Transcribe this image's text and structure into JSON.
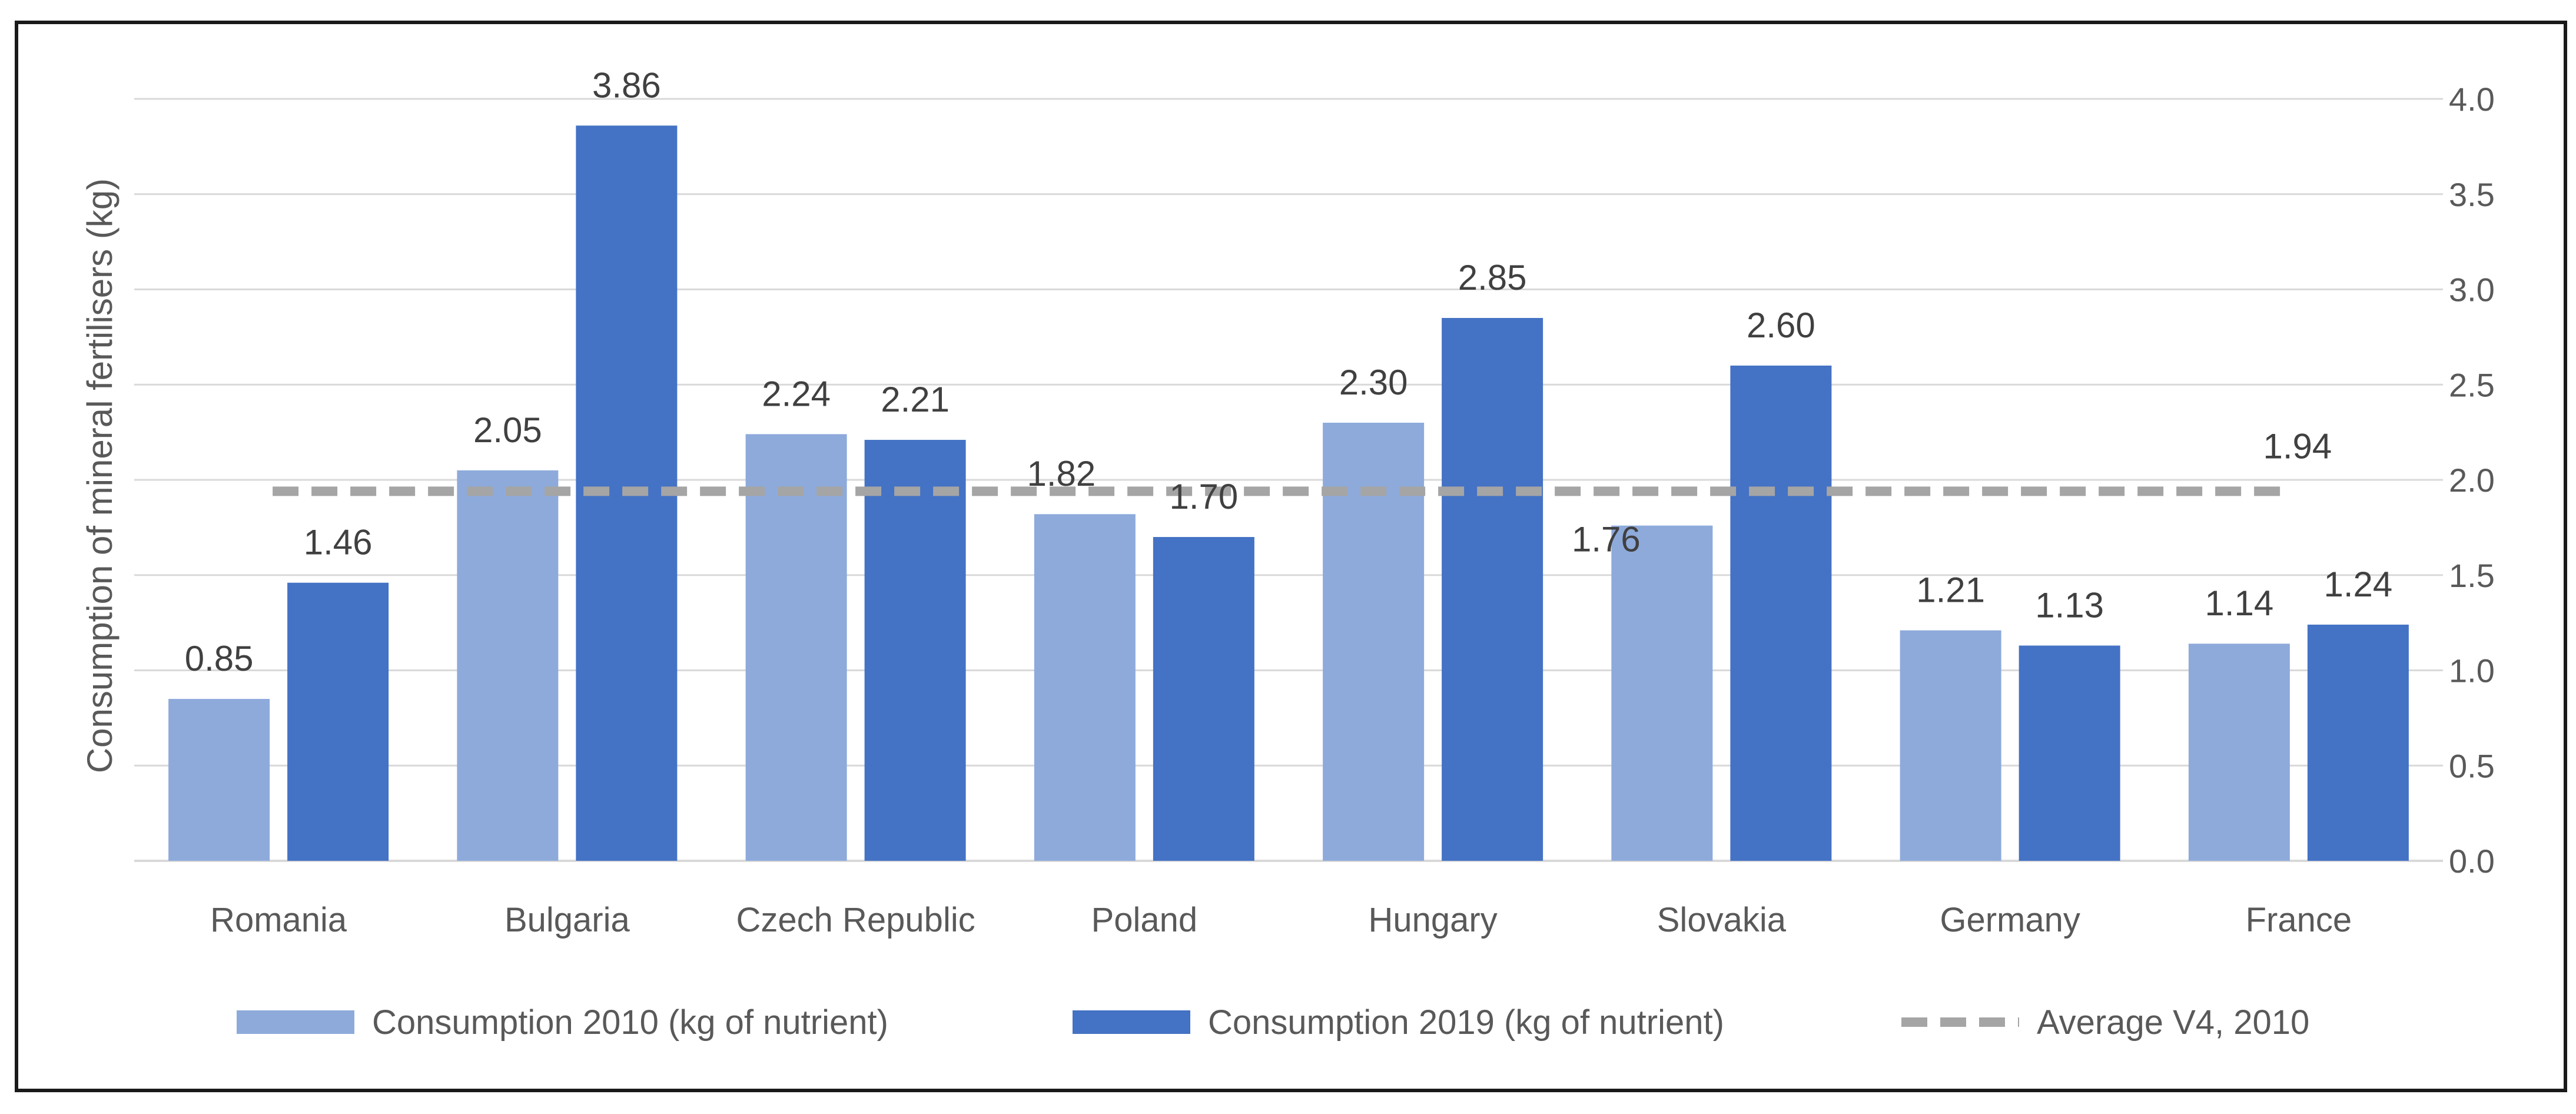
{
  "chart_data": {
    "type": "bar",
    "title": "",
    "ylabel": "Consumption of mineral fertilisers (kg)",
    "xlabel": "",
    "ylim": [
      0,
      4
    ],
    "y_ticks": [
      "0.0",
      "0.5",
      "1.0",
      "1.5",
      "2.0",
      "2.5",
      "3.0",
      "3.5",
      "4.0"
    ],
    "y_axis_side": "right",
    "categories": [
      "Romania",
      "Bulgaria",
      "Czech Republic",
      "Poland",
      "Hungary",
      "Slovakia",
      "Germany",
      "France"
    ],
    "series": [
      {
        "name": "Consumption 2010 (kg of nutrient)",
        "color": "#8eaadb",
        "values": [
          0.85,
          2.05,
          2.24,
          1.82,
          2.3,
          1.76,
          1.21,
          1.14
        ],
        "labels": [
          "0.85",
          "2.05",
          "2.24",
          "1.82",
          "2.30",
          "1.76",
          "1.21",
          "1.14"
        ]
      },
      {
        "name": "Consumption 2019 (kg of nutrient)",
        "color": "#4472c4",
        "values": [
          1.46,
          3.86,
          2.21,
          1.7,
          2.85,
          2.6,
          1.13,
          1.24
        ],
        "labels": [
          "1.46",
          "3.86",
          "2.21",
          "1.70",
          "2.85",
          "2.60",
          "1.13",
          "1.24"
        ]
      }
    ],
    "reference_line": {
      "name": "Average V4, 2010",
      "value": 1.94,
      "label": "1.94",
      "color": "#a5a5a5",
      "style": "dashed"
    },
    "grid": true,
    "legend_position": "bottom"
  }
}
